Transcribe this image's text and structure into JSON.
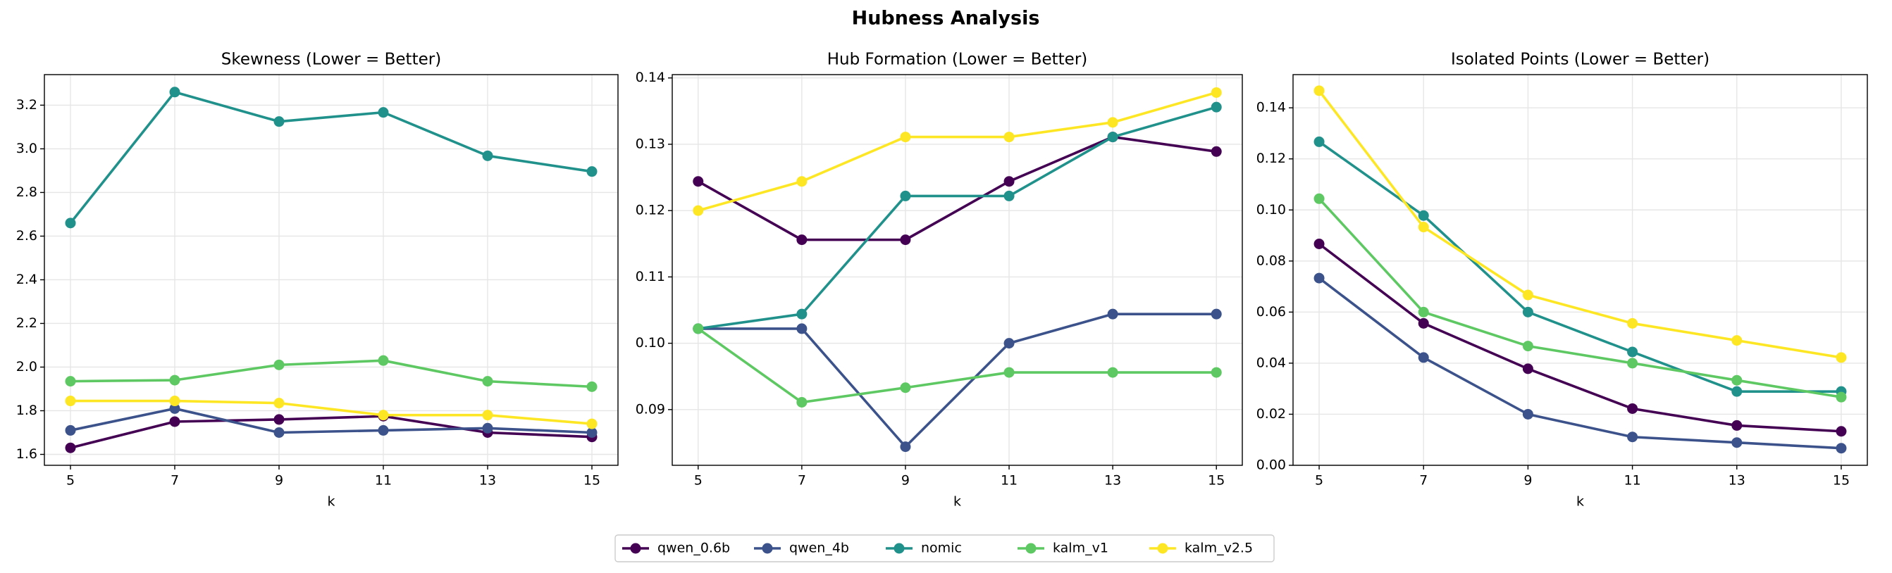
{
  "title": "Hubness Analysis",
  "legend": "lower center",
  "chart_data": [
    {
      "type": "line",
      "title": "Skewness (Lower = Better)",
      "xlabel": "k",
      "x": [
        5,
        7,
        9,
        11,
        13,
        15
      ],
      "xlim": [
        4.5,
        15.5
      ],
      "xticks": [
        5,
        7,
        9,
        11,
        13,
        15
      ],
      "ylim": [
        1.55,
        3.34
      ],
      "yticks": [
        1.6,
        1.8,
        {
          "value": 2,
          "label": "2.0"
        },
        2.2,
        2.4,
        2.6,
        2.8,
        {
          "value": 3,
          "label": "3.0"
        },
        3.2
      ],
      "grid": true,
      "series": [
        {
          "name": "qwen_0.6b",
          "color": "#440154",
          "values": [
            1.63,
            1.75,
            1.76,
            1.775,
            1.7,
            1.68
          ]
        },
        {
          "name": "qwen_4b",
          "color": "#3b528b",
          "values": [
            1.71,
            1.81,
            1.7,
            1.71,
            1.72,
            1.7
          ]
        },
        {
          "name": "nomic",
          "color": "#21918c",
          "values": [
            2.66,
            3.26,
            3.125,
            3.167,
            2.968,
            2.896
          ]
        },
        {
          "name": "kalm_v1",
          "color": "#5ec962",
          "values": [
            1.935,
            1.94,
            2.01,
            2.03,
            1.935,
            1.91
          ]
        },
        {
          "name": "kalm_v2.5",
          "color": "#fde725",
          "values": [
            1.845,
            1.845,
            1.835,
            1.78,
            1.78,
            1.74
          ]
        }
      ]
    },
    {
      "type": "line",
      "title": "Hub Formation (Lower = Better)",
      "xlabel": "k",
      "x": [
        5,
        7,
        9,
        11,
        13,
        15
      ],
      "xlim": [
        4.5,
        15.5
      ],
      "xticks": [
        5,
        7,
        9,
        11,
        13,
        15
      ],
      "ylim": [
        0.0816,
        0.1405
      ],
      "yticks": [
        0.09,
        {
          "value": 0.1,
          "label": "0.10"
        },
        0.11,
        0.12,
        0.13,
        0.14
      ],
      "grid": true,
      "series": [
        {
          "name": "qwen_0.6b",
          "color": "#440154",
          "values": [
            0.1244,
            0.1156,
            0.1156,
            0.1244,
            0.1311,
            0.1289
          ]
        },
        {
          "name": "qwen_4b",
          "color": "#3b528b",
          "values": [
            0.1022,
            0.1022,
            0.0844,
            0.1,
            0.1044,
            0.1044
          ]
        },
        {
          "name": "nomic",
          "color": "#21918c",
          "values": [
            0.1022,
            0.1044,
            0.1222,
            0.1222,
            0.1311,
            0.1356
          ]
        },
        {
          "name": "kalm_v1",
          "color": "#5ec962",
          "values": [
            0.1022,
            0.0911,
            0.0933,
            0.0956,
            0.0956,
            0.0956
          ]
        },
        {
          "name": "kalm_v2.5",
          "color": "#fde725",
          "values": [
            0.12,
            0.1244,
            0.1311,
            0.1311,
            0.1333,
            0.1378
          ]
        }
      ]
    },
    {
      "type": "line",
      "title": "Isolated Points (Lower = Better)",
      "xlabel": "k",
      "x": [
        5,
        7,
        9,
        11,
        13,
        15
      ],
      "xlim": [
        4.5,
        15.5
      ],
      "xticks": [
        5,
        7,
        9,
        11,
        13,
        15
      ],
      "ylim": [
        0,
        0.153
      ],
      "yticks": [
        {
          "value": 0,
          "label": "0.00"
        },
        0.02,
        0.04,
        0.06,
        0.08,
        {
          "value": 0.1,
          "label": "0.10"
        },
        0.12,
        0.14
      ],
      "grid": true,
      "series": [
        {
          "name": "qwen_0.6b",
          "color": "#440154",
          "values": [
            0.0867,
            0.0556,
            0.0378,
            0.0222,
            0.0156,
            0.0133
          ]
        },
        {
          "name": "qwen_4b",
          "color": "#3b528b",
          "values": [
            0.0733,
            0.0422,
            0.02,
            0.0111,
            0.0089,
            0.0067
          ]
        },
        {
          "name": "nomic",
          "color": "#21918c",
          "values": [
            0.1267,
            0.0978,
            0.06,
            0.0444,
            0.0289,
            0.0289
          ]
        },
        {
          "name": "kalm_v1",
          "color": "#5ec962",
          "values": [
            0.1044,
            0.06,
            0.0467,
            0.04,
            0.0333,
            0.0267
          ]
        },
        {
          "name": "kalm_v2.5",
          "color": "#fde725",
          "values": [
            0.1467,
            0.0933,
            0.0667,
            0.0556,
            0.0489,
            0.0422
          ]
        }
      ]
    }
  ]
}
